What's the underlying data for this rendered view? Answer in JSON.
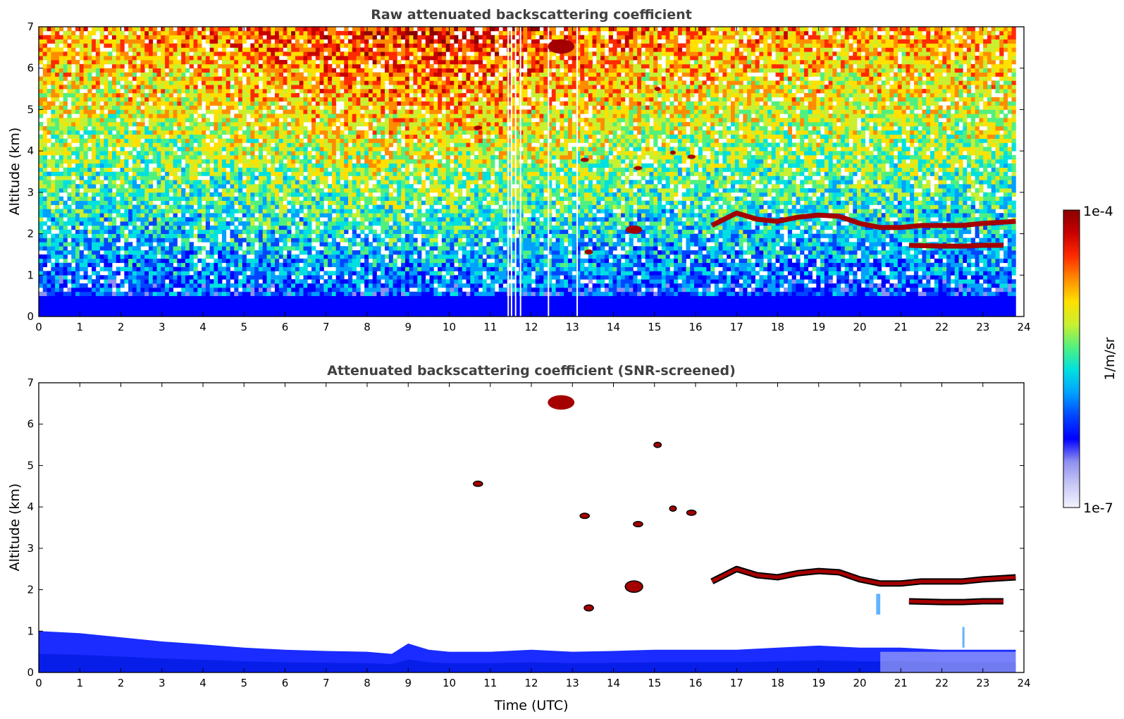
{
  "chart_data": [
    {
      "type": "heatmap",
      "title": "Raw attenuated backscattering coefficient",
      "xlabel": "",
      "ylabel": "Altitude (km)",
      "xlim": [
        0,
        24
      ],
      "ylim": [
        0,
        7
      ],
      "xticks": [
        "0",
        "1",
        "2",
        "3",
        "4",
        "5",
        "6",
        "7",
        "8",
        "9",
        "10",
        "11",
        "12",
        "13",
        "14",
        "15",
        "16",
        "17",
        "18",
        "19",
        "20",
        "21",
        "22",
        "23",
        "24"
      ],
      "yticks": [
        "0",
        "1",
        "2",
        "3",
        "4",
        "5",
        "6",
        "7"
      ],
      "grid": false,
      "data_end_time": 23.8,
      "missing_profiles": [
        11.42,
        11.5,
        11.6,
        11.72,
        12.4,
        13.1
      ],
      "features": [
        {
          "kind": "boundary_layer_aerosol",
          "x": [
            0,
            23.8
          ],
          "top_km": 0.55
        },
        {
          "kind": "cloud",
          "x": [
            12.4,
            13.05
          ],
          "y": [
            6.35,
            6.7
          ]
        },
        {
          "kind": "cloud_layer",
          "points": [
            [
              16.4,
              2.2
            ],
            [
              17.0,
              2.5
            ],
            [
              17.5,
              2.35
            ],
            [
              18.0,
              2.3
            ],
            [
              18.5,
              2.4
            ],
            [
              19.0,
              2.45
            ],
            [
              19.5,
              2.42
            ],
            [
              20.0,
              2.25
            ],
            [
              20.5,
              2.15
            ],
            [
              21.0,
              2.15
            ],
            [
              21.5,
              2.2
            ],
            [
              22.0,
              2.2
            ],
            [
              22.5,
              2.2
            ],
            [
              23.0,
              2.25
            ],
            [
              23.8,
              2.3
            ]
          ]
        },
        {
          "kind": "cloud_layer",
          "points": [
            [
              21.2,
              1.72
            ],
            [
              22.0,
              1.7
            ],
            [
              22.5,
              1.7
            ],
            [
              23.0,
              1.72
            ],
            [
              23.5,
              1.72
            ]
          ]
        },
        {
          "kind": "cloud",
          "x": [
            14.3,
            14.7
          ],
          "y": [
            2.0,
            2.2
          ]
        },
        {
          "kind": "cloud",
          "x": [
            13.2,
            13.4
          ],
          "y": [
            3.75,
            3.82
          ]
        },
        {
          "kind": "cloud",
          "x": [
            15.8,
            16.0
          ],
          "y": [
            3.82,
            3.9
          ]
        },
        {
          "kind": "cloud",
          "x": [
            15.4,
            15.5
          ],
          "y": [
            3.92,
            4.0
          ]
        },
        {
          "kind": "cloud",
          "x": [
            14.5,
            14.7
          ],
          "y": [
            3.55,
            3.62
          ]
        },
        {
          "kind": "cloud",
          "x": [
            15.0,
            15.15
          ],
          "y": [
            5.45,
            5.55
          ]
        },
        {
          "kind": "cloud",
          "x": [
            10.6,
            10.8
          ],
          "y": [
            4.52,
            4.6
          ]
        },
        {
          "kind": "cloud",
          "x": [
            13.3,
            13.5
          ],
          "y": [
            1.5,
            1.62
          ]
        }
      ]
    },
    {
      "type": "heatmap",
      "title": "Attenuated backscattering coefficient (SNR-screened)",
      "xlabel": "Time (UTC)",
      "ylabel": "Altitude (km)",
      "xlim": [
        0,
        24
      ],
      "ylim": [
        0,
        7
      ],
      "xticks": [
        "0",
        "1",
        "2",
        "3",
        "4",
        "5",
        "6",
        "7",
        "8",
        "9",
        "10",
        "11",
        "12",
        "13",
        "14",
        "15",
        "16",
        "17",
        "18",
        "19",
        "20",
        "21",
        "22",
        "23",
        "24"
      ],
      "yticks": [
        "0",
        "1",
        "2",
        "3",
        "4",
        "5",
        "6",
        "7"
      ],
      "grid": false,
      "boundary_layer_top_km": [
        [
          0,
          1.0
        ],
        [
          1,
          0.95
        ],
        [
          2,
          0.85
        ],
        [
          3,
          0.75
        ],
        [
          4,
          0.68
        ],
        [
          5,
          0.6
        ],
        [
          6,
          0.55
        ],
        [
          7,
          0.52
        ],
        [
          8,
          0.5
        ],
        [
          8.6,
          0.45
        ],
        [
          9,
          0.7
        ],
        [
          9.5,
          0.55
        ],
        [
          10,
          0.5
        ],
        [
          11,
          0.5
        ],
        [
          12,
          0.55
        ],
        [
          13,
          0.5
        ],
        [
          14,
          0.52
        ],
        [
          15,
          0.55
        ],
        [
          16,
          0.55
        ],
        [
          17,
          0.55
        ],
        [
          18,
          0.6
        ],
        [
          19,
          0.65
        ],
        [
          20,
          0.6
        ],
        [
          21,
          0.6
        ],
        [
          22,
          0.55
        ],
        [
          23,
          0.55
        ],
        [
          23.8,
          0.55
        ]
      ],
      "features": [
        {
          "kind": "cloud",
          "x": [
            12.4,
            13.05
          ],
          "y": [
            6.35,
            6.7
          ]
        },
        {
          "kind": "cloud_layer",
          "points": [
            [
              16.4,
              2.2
            ],
            [
              17.0,
              2.5
            ],
            [
              17.5,
              2.35
            ],
            [
              18.0,
              2.3
            ],
            [
              18.5,
              2.4
            ],
            [
              19.0,
              2.45
            ],
            [
              19.5,
              2.42
            ],
            [
              20.0,
              2.25
            ],
            [
              20.5,
              2.15
            ],
            [
              21.0,
              2.15
            ],
            [
              21.5,
              2.2
            ],
            [
              22.0,
              2.2
            ],
            [
              22.5,
              2.2
            ],
            [
              23.0,
              2.25
            ],
            [
              23.8,
              2.3
            ]
          ]
        },
        {
          "kind": "cloud_layer",
          "points": [
            [
              21.2,
              1.72
            ],
            [
              22.0,
              1.7
            ],
            [
              22.5,
              1.7
            ],
            [
              23.0,
              1.72
            ],
            [
              23.5,
              1.72
            ]
          ]
        },
        {
          "kind": "cloud",
          "x": [
            14.3,
            14.7
          ],
          "y": [
            1.95,
            2.2
          ]
        },
        {
          "kind": "cloud",
          "x": [
            13.2,
            13.4
          ],
          "y": [
            3.75,
            3.82
          ]
        },
        {
          "kind": "cloud",
          "x": [
            15.8,
            16.0
          ],
          "y": [
            3.82,
            3.9
          ]
        },
        {
          "kind": "cloud",
          "x": [
            15.4,
            15.5
          ],
          "y": [
            3.92,
            4.0
          ]
        },
        {
          "kind": "cloud",
          "x": [
            14.5,
            14.7
          ],
          "y": [
            3.55,
            3.62
          ]
        },
        {
          "kind": "cloud",
          "x": [
            15.0,
            15.15
          ],
          "y": [
            5.45,
            5.55
          ]
        },
        {
          "kind": "cloud",
          "x": [
            10.6,
            10.8
          ],
          "y": [
            4.52,
            4.6
          ]
        },
        {
          "kind": "cloud",
          "x": [
            13.3,
            13.5
          ],
          "y": [
            1.5,
            1.62
          ]
        },
        {
          "kind": "plume",
          "x": [
            20.4,
            20.5
          ],
          "y": [
            1.4,
            1.9
          ]
        },
        {
          "kind": "plume",
          "x": [
            22.5,
            22.55
          ],
          "y": [
            0.6,
            1.1
          ]
        }
      ]
    }
  ],
  "colorbar": {
    "label": "1/m/sr",
    "min_label": "1e-7",
    "max_label": "1e-4",
    "scale": "log",
    "colormap": [
      "#f2f2ff",
      "#c8c8f5",
      "#8f8ff0",
      "#0000ff",
      "#0046ff",
      "#00a0ff",
      "#00e0e0",
      "#50f080",
      "#c8f030",
      "#ffe000",
      "#ff8c00",
      "#ff2a00",
      "#c80000",
      "#8b0000"
    ]
  }
}
